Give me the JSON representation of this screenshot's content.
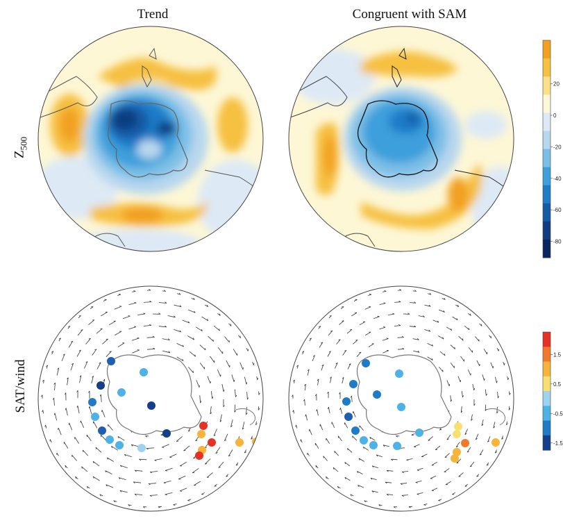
{
  "columns": [
    "Trend",
    "Congruent with SAM"
  ],
  "rows": [
    "Z",
    "500",
    "SAT/wind"
  ],
  "colorbar_top": {
    "ticks": [
      "20",
      "0",
      "-20",
      "-40",
      "-60",
      "-80"
    ],
    "colors": [
      "#f2a020",
      "#f6c040",
      "#fbe08a",
      "#fdf8d8",
      "#dde9f5",
      "#b7d7ee",
      "#7bbfe6",
      "#3d9fdb",
      "#1f7cc7",
      "#165aa6",
      "#103c80",
      "#0a2560"
    ]
  },
  "colorbar_bottom": {
    "ticks": [
      "1.5",
      "0.5",
      "-0.5",
      "-1.5"
    ],
    "colors": [
      "#e53224",
      "#f07a2a",
      "#f6b43a",
      "#f8e070",
      "#9dd3ef",
      "#4fb2e6",
      "#1f7bc7",
      "#153f8a"
    ]
  }
}
